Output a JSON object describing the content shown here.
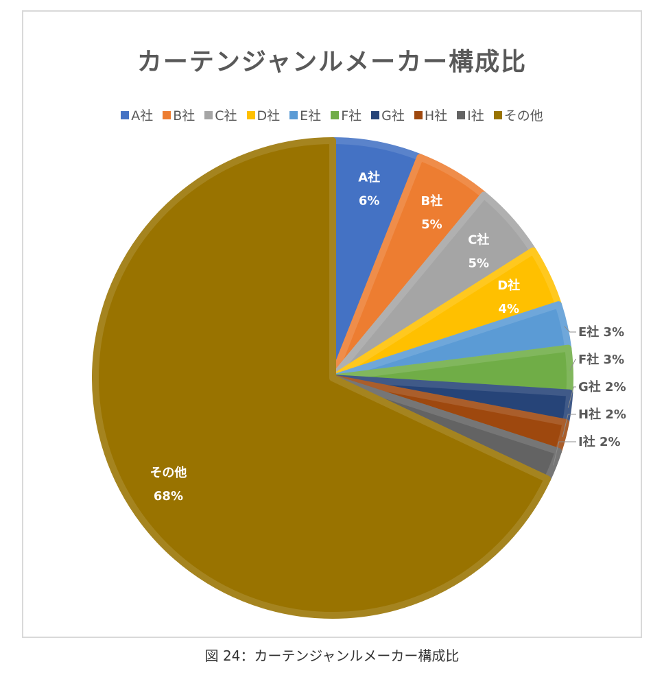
{
  "chart_data": {
    "type": "pie",
    "title": "カーテンジャンルメーカー構成比",
    "categories": [
      "A社",
      "B社",
      "C社",
      "D社",
      "E社",
      "F社",
      "G社",
      "H社",
      "I社",
      "その他"
    ],
    "values": [
      6,
      5,
      5,
      4,
      3,
      3,
      2,
      2,
      2,
      68
    ],
    "value_unit": "%",
    "colors": [
      "#4472c4",
      "#ed7d31",
      "#a5a5a5",
      "#ffc000",
      "#5b9bd5",
      "#70ad47",
      "#264478",
      "#9e480e",
      "#636363",
      "#997300"
    ],
    "legend_position": "top",
    "data_labels": [
      "A社 6%",
      "B社 5%",
      "C社 5%",
      "D社 4%",
      "E社 3%",
      "F社 3%",
      "G社 2%",
      "H社 2%",
      "I社 2%",
      "その他 68%"
    ]
  },
  "caption": "図 24：カーテンジャンルメーカー構成比"
}
